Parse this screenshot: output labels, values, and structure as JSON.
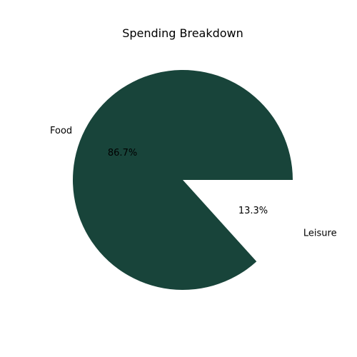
{
  "chart_data": {
    "type": "pie",
    "title": "Spending Breakdown",
    "slices": [
      {
        "label": "Food",
        "value": 86.7,
        "pct_label": "86.7%",
        "color": "#18443a"
      },
      {
        "label": "Leisure",
        "value": 13.3,
        "pct_label": "13.3%",
        "color": "#ffffff"
      }
    ],
    "start_angle_deg": 0,
    "direction": "counterclockwise",
    "explode": [
      0,
      0.1
    ]
  }
}
